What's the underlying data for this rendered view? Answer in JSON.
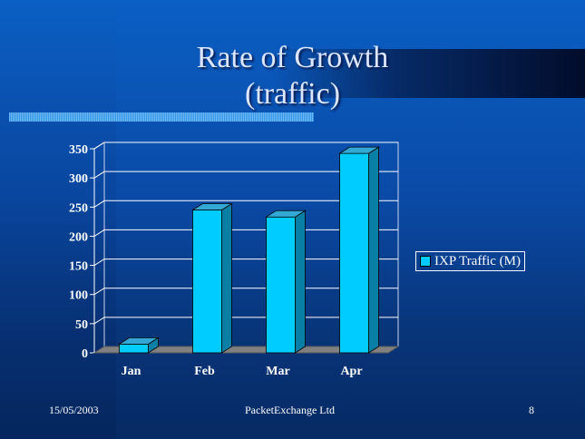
{
  "slide": {
    "title_line1": "Rate of Growth",
    "title_line2": "(traffic)"
  },
  "chart_data": {
    "type": "bar",
    "categories": [
      "Jan",
      "Feb",
      "Mar",
      "Apr"
    ],
    "series": [
      {
        "name": "IXP Traffic (M)",
        "values": [
          15,
          245,
          233,
          342
        ]
      }
    ],
    "ylim": [
      0,
      350
    ],
    "yticks": [
      0,
      50,
      100,
      150,
      200,
      250,
      300,
      350
    ],
    "grid": true,
    "legend": "right",
    "colors": {
      "bar": "#00ccff",
      "bar_top": "#33a8d4",
      "bar_side": "#0a7fa6",
      "floor": "#808080"
    }
  },
  "footer": {
    "date": "15/05/2003",
    "company": "PacketExchange Ltd",
    "page": "8"
  }
}
